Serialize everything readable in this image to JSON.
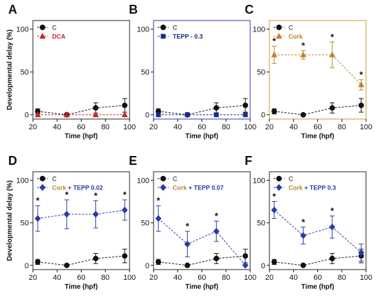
{
  "chart_data": [
    {
      "type": "line",
      "panel_label": "A",
      "xlabel": "Time (hpf)",
      "ylabel": "Developmental delay (%)",
      "xlim": [
        20,
        100
      ],
      "ylim": [
        -5,
        110
      ],
      "xticks": [
        20,
        40,
        60,
        80,
        100
      ],
      "yticks": [
        0,
        50,
        100
      ],
      "frame_color": "#222222",
      "legend": [
        {
          "parts": [
            {
              "text": "C",
              "color": "#111111",
              "bold": false
            }
          ],
          "color": "#111111",
          "marker": "circle"
        },
        {
          "parts": [
            {
              "text": "DCA",
              "color": "#cc2222",
              "bold": true
            }
          ],
          "color": "#cc2222",
          "marker": "triangle"
        }
      ],
      "series": [
        {
          "color": "#111111",
          "marker": "circle",
          "x": [
            24,
            48,
            72,
            96
          ],
          "y": [
            4,
            0,
            8,
            11
          ],
          "err": [
            3,
            1,
            6,
            8
          ],
          "stars": [
            false,
            false,
            false,
            false
          ]
        },
        {
          "color": "#cc2222",
          "marker": "triangle",
          "x": [
            24,
            48,
            72,
            96
          ],
          "y": [
            0,
            0,
            0,
            0
          ],
          "err": [
            0,
            0,
            0,
            0
          ],
          "stars": [
            false,
            false,
            false,
            false
          ]
        }
      ]
    },
    {
      "type": "line",
      "panel_label": "B",
      "xlabel": "Time (hpf)",
      "ylabel": "",
      "xlim": [
        20,
        100
      ],
      "ylim": [
        -5,
        110
      ],
      "xticks": [
        20,
        40,
        60,
        80,
        100
      ],
      "yticks": [
        0,
        50,
        100
      ],
      "frame_color": "#2a3aa8",
      "legend": [
        {
          "parts": [
            {
              "text": "C",
              "color": "#111111",
              "bold": false
            }
          ],
          "color": "#111111",
          "marker": "circle"
        },
        {
          "parts": [
            {
              "text": "TEPP - 0.3",
              "color": "#1a2a8a",
              "bold": true
            }
          ],
          "color": "#1a2a8a",
          "marker": "square"
        }
      ],
      "series": [
        {
          "color": "#111111",
          "marker": "circle",
          "x": [
            24,
            48,
            72,
            96
          ],
          "y": [
            4,
            0,
            8,
            11
          ],
          "err": [
            3,
            1,
            6,
            8
          ],
          "stars": [
            false,
            false,
            false,
            false
          ]
        },
        {
          "color": "#1a2a8a",
          "marker": "square",
          "x": [
            24,
            48,
            72,
            96
          ],
          "y": [
            0,
            0,
            0,
            0
          ],
          "err": [
            0,
            0,
            0,
            0
          ],
          "stars": [
            false,
            false,
            false,
            false
          ]
        }
      ]
    },
    {
      "type": "line",
      "panel_label": "C",
      "xlabel": "Time (hpf)",
      "ylabel": "",
      "xlim": [
        20,
        100
      ],
      "ylim": [
        -5,
        110
      ],
      "xticks": [
        20,
        40,
        60,
        80,
        100
      ],
      "yticks": [
        0,
        50,
        100
      ],
      "frame_color": "#c89a2a",
      "legend": [
        {
          "parts": [
            {
              "text": "C",
              "color": "#111111",
              "bold": false
            }
          ],
          "color": "#111111",
          "marker": "circle"
        },
        {
          "parts": [
            {
              "text": "Cork",
              "color": "#b8862a",
              "bold": true
            }
          ],
          "color": "#b8862a",
          "marker": "triangle"
        }
      ],
      "series": [
        {
          "color": "#111111",
          "marker": "circle",
          "x": [
            24,
            48,
            72,
            96
          ],
          "y": [
            4,
            0,
            8,
            11
          ],
          "err": [
            3,
            1,
            6,
            8
          ],
          "stars": [
            false,
            false,
            false,
            false
          ]
        },
        {
          "color": "#b8862a",
          "marker": "triangle",
          "x": [
            24,
            48,
            72,
            96
          ],
          "y": [
            70,
            70,
            70,
            35
          ],
          "err": [
            10,
            5,
            15,
            6
          ],
          "stars": [
            true,
            true,
            true,
            true
          ]
        }
      ]
    },
    {
      "type": "line",
      "panel_label": "D",
      "xlabel": "Time (hpf)",
      "ylabel": "Developmental delay (%)",
      "xlim": [
        20,
        100
      ],
      "ylim": [
        -5,
        110
      ],
      "xticks": [
        20,
        40,
        60,
        80,
        100
      ],
      "yticks": [
        0,
        50,
        100
      ],
      "frame_color": "#222222",
      "legend": [
        {
          "parts": [
            {
              "text": "C",
              "color": "#111111",
              "bold": false
            }
          ],
          "color": "#111111",
          "marker": "circle"
        },
        {
          "parts": [
            {
              "text": "Cork",
              "color": "#b8862a",
              "bold": true
            },
            {
              "text": " + TEPP 0.02",
              "color": "#2a3aa8",
              "bold": true
            }
          ],
          "color": "#2a3aa8",
          "marker": "diamond"
        }
      ],
      "series": [
        {
          "color": "#111111",
          "marker": "circle",
          "x": [
            24,
            48,
            72,
            96
          ],
          "y": [
            4,
            0,
            8,
            11
          ],
          "err": [
            3,
            1,
            6,
            8
          ],
          "stars": [
            false,
            false,
            false,
            false
          ]
        },
        {
          "color": "#2a3aa8",
          "marker": "diamond",
          "x": [
            24,
            48,
            72,
            96
          ],
          "y": [
            55,
            60,
            60,
            65
          ],
          "err": [
            15,
            17,
            16,
            12
          ],
          "stars": [
            true,
            true,
            true,
            true
          ]
        }
      ]
    },
    {
      "type": "line",
      "panel_label": "E",
      "xlabel": "Time (hpf)",
      "ylabel": "",
      "xlim": [
        20,
        100
      ],
      "ylim": [
        -5,
        110
      ],
      "xticks": [
        20,
        40,
        60,
        80,
        100
      ],
      "yticks": [
        0,
        50,
        100
      ],
      "frame_color": "#222222",
      "legend": [
        {
          "parts": [
            {
              "text": "C",
              "color": "#111111",
              "bold": false
            }
          ],
          "color": "#111111",
          "marker": "circle"
        },
        {
          "parts": [
            {
              "text": "Cork",
              "color": "#b8862a",
              "bold": true
            },
            {
              "text": " + TEPP 0.07",
              "color": "#2a3aa8",
              "bold": true
            }
          ],
          "color": "#2a3aa8",
          "marker": "diamond"
        }
      ],
      "series": [
        {
          "color": "#111111",
          "marker": "circle",
          "x": [
            24,
            48,
            72,
            96
          ],
          "y": [
            4,
            0,
            8,
            11
          ],
          "err": [
            3,
            1,
            6,
            8
          ],
          "stars": [
            false,
            false,
            false,
            false
          ]
        },
        {
          "color": "#2a3aa8",
          "marker": "diamond",
          "x": [
            24,
            48,
            72,
            96
          ],
          "y": [
            55,
            25,
            40,
            0
          ],
          "err": [
            15,
            15,
            12,
            0
          ],
          "stars": [
            true,
            true,
            true,
            false
          ]
        }
      ]
    },
    {
      "type": "line",
      "panel_label": "F",
      "xlabel": "Time (hpf)",
      "ylabel": "",
      "xlim": [
        20,
        100
      ],
      "ylim": [
        -5,
        110
      ],
      "xticks": [
        20,
        40,
        60,
        80,
        100
      ],
      "yticks": [
        0,
        50,
        100
      ],
      "frame_color": "#222222",
      "legend": [
        {
          "parts": [
            {
              "text": "C",
              "color": "#111111",
              "bold": false
            }
          ],
          "color": "#111111",
          "marker": "circle"
        },
        {
          "parts": [
            {
              "text": "Cork",
              "color": "#b8862a",
              "bold": true
            },
            {
              "text": " + TEPP 0.3",
              "color": "#2a3aa8",
              "bold": true
            }
          ],
          "color": "#2a3aa8",
          "marker": "diamond"
        }
      ],
      "series": [
        {
          "color": "#111111",
          "marker": "circle",
          "x": [
            24,
            48,
            72,
            96
          ],
          "y": [
            4,
            0,
            8,
            11
          ],
          "err": [
            3,
            1,
            6,
            8
          ],
          "stars": [
            false,
            false,
            false,
            false
          ]
        },
        {
          "color": "#2a3aa8",
          "marker": "diamond",
          "x": [
            24,
            48,
            72,
            96
          ],
          "y": [
            65,
            35,
            45,
            15
          ],
          "err": [
            10,
            10,
            13,
            10
          ],
          "stars": [
            true,
            true,
            true,
            false
          ]
        }
      ]
    }
  ]
}
